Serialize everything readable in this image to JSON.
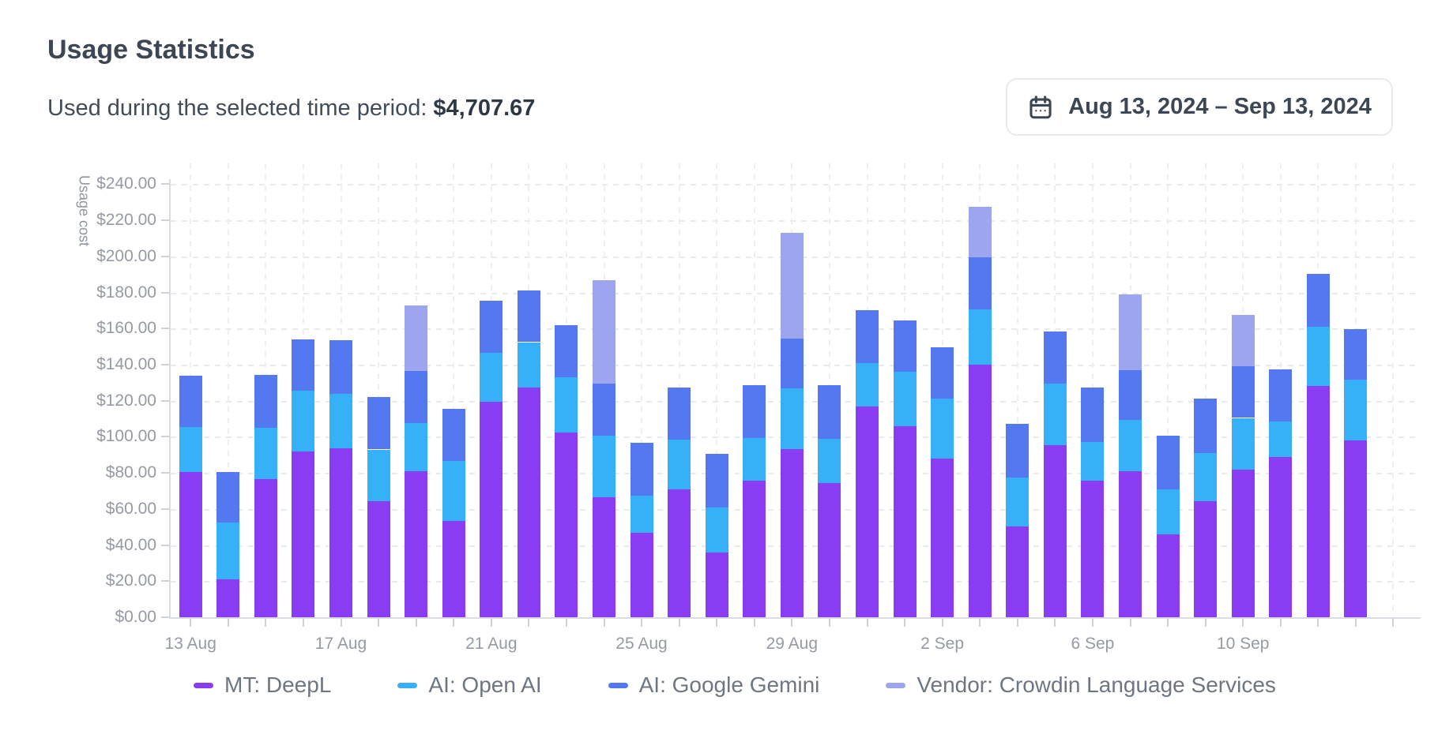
{
  "header": {
    "title": "Usage Statistics",
    "subtitle_label": "Used during the selected time period:",
    "subtitle_amount": "$4,707.67",
    "date_range": "Aug 13, 2024 – Sep 13, 2024"
  },
  "colors": {
    "deepl_purple": "#8a3cf2",
    "openai_cyan": "#36b1f8",
    "gemini_blue": "#5478ef",
    "crowdin_lavender": "#9ca5ee",
    "axis_line": "#d9dde2",
    "grid_line": "#e8eaee",
    "axis_text": "#959aa3",
    "legend_text": "#6e7681",
    "title_text": "#3d4754"
  },
  "chart_data": {
    "type": "bar",
    "stacked": true,
    "title": "",
    "xlabel": "",
    "ylabel": "Usage cost",
    "ylim": [
      0,
      240
    ],
    "ytick_step": 20,
    "grid": "dashed",
    "legend_position": "bottom",
    "ytick_labels": [
      "$240.00",
      "$220.00",
      "$200.00",
      "$180.00",
      "$160.00",
      "$140.00",
      "$120.00",
      "$100.00",
      "$80.00",
      "$60.00",
      "$40.00",
      "$20.00",
      "$0.00"
    ],
    "categories": [
      "13 Aug",
      "14 Aug",
      "15 Aug",
      "16 Aug",
      "17 Aug",
      "18 Aug",
      "19 Aug",
      "20 Aug",
      "21 Aug",
      "22 Aug",
      "23 Aug",
      "24 Aug",
      "25 Aug",
      "26 Aug",
      "27 Aug",
      "28 Aug",
      "29 Aug",
      "30 Aug",
      "31 Aug",
      "1 Sep",
      "2 Sep",
      "3 Sep",
      "4 Sep",
      "5 Sep",
      "6 Sep",
      "7 Sep",
      "8 Sep",
      "9 Sep",
      "10 Sep",
      "11 Sep",
      "12 Sep",
      "13 Sep"
    ],
    "xtick_labels_visible": [
      "13 Aug",
      "17 Aug",
      "21 Aug",
      "25 Aug",
      "29 Aug",
      "2 Sep",
      "6 Sep",
      "10 Sep"
    ],
    "xtick_label_every": 4,
    "series": [
      {
        "name": "MT: DeepL",
        "color": "#8a3cf2",
        "values": [
          80.5,
          21,
          76.5,
          92,
          93.5,
          64.5,
          81,
          53.5,
          119.5,
          127.5,
          102.5,
          66.5,
          47,
          71,
          36,
          75.5,
          93,
          74.5,
          117,
          106,
          88,
          140,
          50.5,
          95.5,
          75.5,
          81,
          46,
          64.5,
          82,
          89,
          128,
          98
        ]
      },
      {
        "name": "AI: Open AI",
        "color": "#36b1f8",
        "values": [
          25,
          31.5,
          28.5,
          33.5,
          30.5,
          28.5,
          26.5,
          33,
          27,
          25,
          30.5,
          34,
          20.5,
          27.5,
          25,
          24,
          34,
          24.5,
          24,
          30,
          33,
          30.5,
          27,
          34,
          21.5,
          28.5,
          25,
          26.5,
          28.5,
          19.5,
          33,
          33.5
        ]
      },
      {
        "name": "AI: Google Gemini",
        "color": "#5478ef",
        "values": [
          28.5,
          28,
          29.5,
          28.5,
          29.5,
          29,
          29,
          29,
          29,
          28.5,
          29,
          29,
          29,
          29,
          29.5,
          29,
          27.5,
          29.5,
          29,
          28.5,
          28.5,
          29,
          29.5,
          29,
          30.5,
          27.5,
          29.5,
          30,
          28.5,
          29,
          29.5,
          28
        ]
      },
      {
        "name": "Vendor: Crowdin Language Services",
        "color": "#9ca5ee",
        "values": [
          0,
          0,
          0,
          0,
          0,
          0,
          36.5,
          0,
          0,
          0,
          0,
          57.5,
          0,
          0,
          0,
          0,
          58.5,
          0,
          0,
          0,
          0,
          28,
          0,
          0,
          0,
          42,
          0,
          0,
          28.5,
          0,
          0,
          0
        ]
      }
    ]
  }
}
